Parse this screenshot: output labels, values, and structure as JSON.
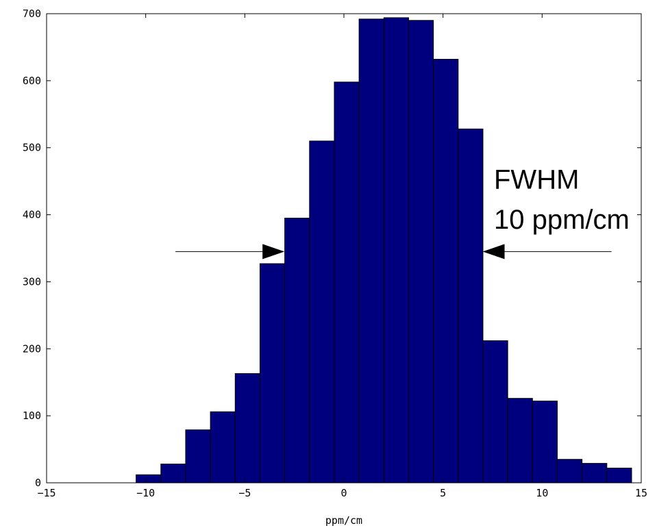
{
  "chart_data": {
    "type": "bar",
    "title": "",
    "xlabel": "ppm/cm",
    "ylabel": "",
    "xlim": [
      -15,
      15
    ],
    "ylim": [
      0,
      700
    ],
    "xticks": [
      -15,
      -10,
      -5,
      0,
      5,
      10,
      15
    ],
    "yticks": [
      0,
      100,
      200,
      300,
      400,
      500,
      600,
      700
    ],
    "bin_width": 1.25,
    "bin_centers": [
      -9.86,
      -8.61,
      -7.36,
      -6.11,
      -4.86,
      -3.61,
      -2.36,
      -1.11,
      0.14,
      1.39,
      2.64,
      3.89,
      5.14,
      6.39,
      7.64,
      8.89,
      10.14,
      11.39,
      12.64,
      13.89
    ],
    "values": [
      12,
      28,
      79,
      106,
      163,
      327,
      395,
      510,
      598,
      692,
      694,
      690,
      632,
      528,
      212,
      126,
      122,
      35,
      29,
      22
    ],
    "bar_color": "#00007f",
    "edge_color": "#000000",
    "grid": false,
    "annotations": [
      {
        "text": "FWHM",
        "x": 7.5,
        "y": 435
      },
      {
        "text": "10 ppm/cm",
        "x": 7.5,
        "y": 375
      }
    ],
    "arrows": [
      {
        "from_x": -8.5,
        "to_x": -3.0,
        "y": 345
      },
      {
        "from_x": 13.5,
        "to_x": 7.0,
        "y": 345
      }
    ]
  }
}
